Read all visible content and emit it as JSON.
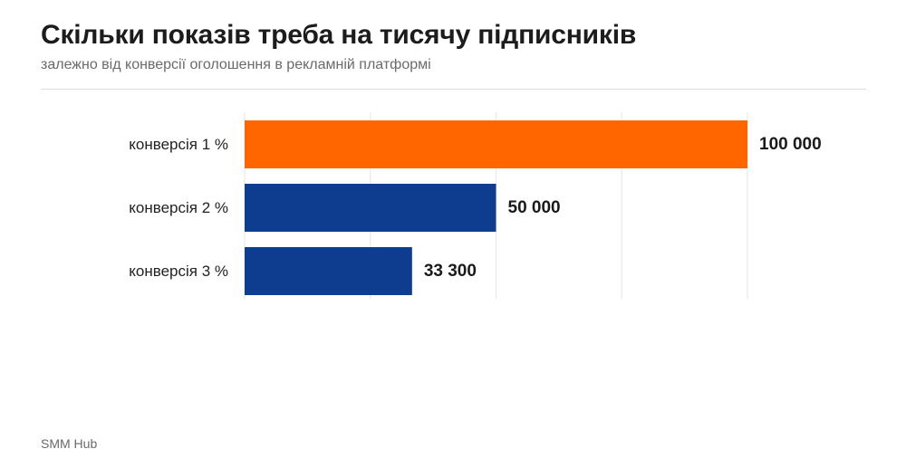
{
  "title": "Скільки показів треба на тисячу підписників",
  "subtitle": "залежно від конверсії оголошення в рекламній платформі",
  "source": "SMM Hub",
  "colors": {
    "highlight": "#ff6600",
    "bar": "#0e3c8f",
    "grid": "#e6e6e6",
    "label": "#222222",
    "value": "#1a1a1a"
  },
  "chart_data": {
    "type": "bar",
    "orientation": "horizontal",
    "categories": [
      "конверсія 1 %",
      "конверсія 2 %",
      "конверсія 3 %"
    ],
    "values": [
      100000,
      50000,
      33300
    ],
    "value_labels": [
      "100 000",
      "50 000",
      "33 300"
    ],
    "highlight_index": 0,
    "xlim": [
      0,
      100000
    ],
    "grid": true,
    "legend": "none"
  }
}
